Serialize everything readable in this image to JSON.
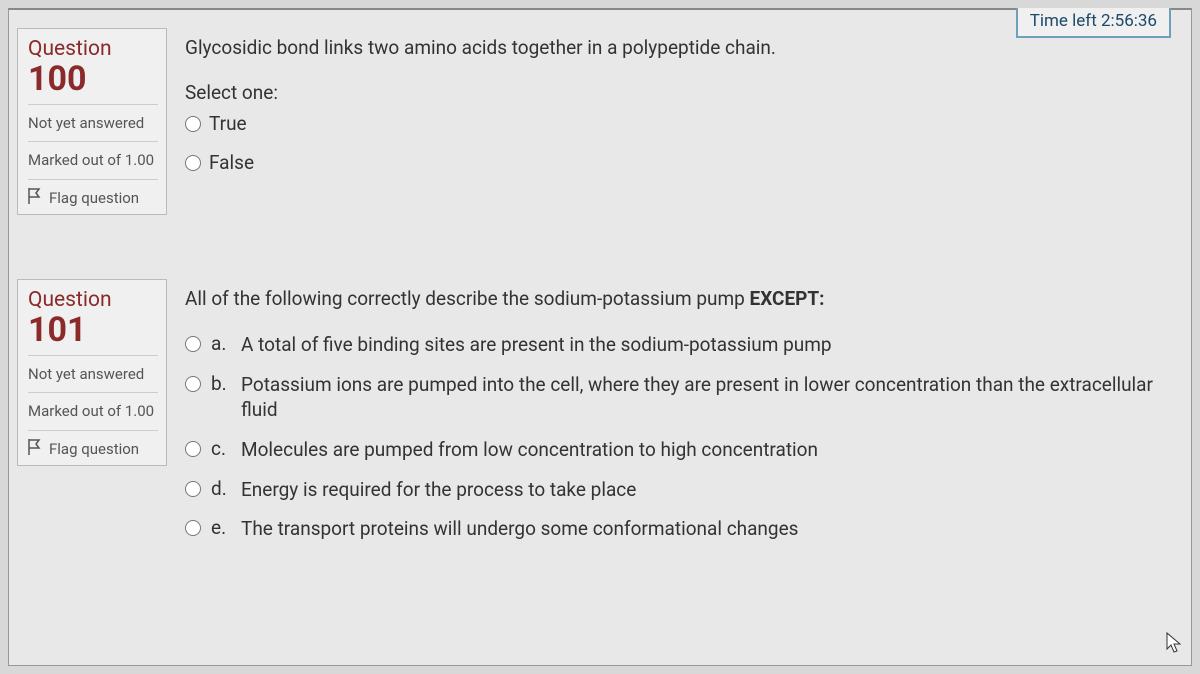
{
  "timer": {
    "label": "Time left",
    "value": "2:56:36"
  },
  "questions": [
    {
      "label": "Question",
      "number": "100",
      "status1": "Not yet answered",
      "status2": "Marked out of 1.00",
      "flag": "Flag question",
      "text": "Glycosidic bond links two amino acids together in a polypeptide chain.",
      "prompt": "Select one:",
      "type": "truefalse",
      "options": [
        {
          "label": "True"
        },
        {
          "label": "False"
        }
      ]
    },
    {
      "label": "Question",
      "number": "101",
      "status1": "Not yet answered",
      "status2": "Marked out of 1.00",
      "flag": "Flag question",
      "text_html": "All of the following correctly describe the sodium-potassium pump <b>EXCEPT:</b>",
      "type": "multichoice",
      "options": [
        {
          "letter": "a.",
          "text": "A total of five binding sites are present in the sodium-potassium pump"
        },
        {
          "letter": "b.",
          "text": "Potassium ions are pumped into the cell, where they are present in lower concentration than the extracellular fluid"
        },
        {
          "letter": "c.",
          "text": "Molecules are pumped from low concentration to high concentration"
        },
        {
          "letter": "d.",
          "text": "Energy is required for the process to take place"
        },
        {
          "letter": "e.",
          "text": "The transport proteins will undergo some conformational changes"
        }
      ]
    }
  ],
  "colors": {
    "question_heading": "#8a2a2a",
    "timer_border": "#6ea0b8",
    "timer_text": "#1b4a6b",
    "body_bg": "#d8d8d8",
    "page_bg": "#e8e8e8",
    "text": "#333333"
  }
}
